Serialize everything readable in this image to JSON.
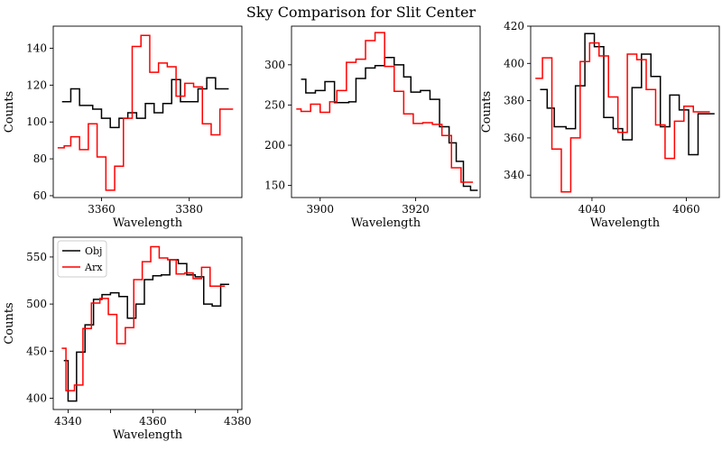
{
  "figure": {
    "title": "Sky Comparison for Slit Center"
  },
  "colors": {
    "obj": "#000000",
    "arx": "#ff0000"
  },
  "chart_data": [
    {
      "type": "line",
      "step": true,
      "xlabel": "Wavelength",
      "ylabel": "Counts",
      "xlim": [
        3349,
        3392
      ],
      "ylim": [
        59,
        152
      ],
      "xticks": [
        3360,
        3380
      ],
      "yticks": [
        60,
        80,
        100,
        120,
        140
      ],
      "series": [
        {
          "name": "Obj",
          "color": "#000000",
          "x": [
            3351,
            3353,
            3355,
            3358,
            3360,
            3362,
            3364,
            3366,
            3368,
            3370,
            3372,
            3374,
            3376,
            3378,
            3380,
            3382,
            3384,
            3386,
            3388,
            3389
          ],
          "y": [
            111,
            118,
            109,
            107,
            102,
            97,
            102,
            105,
            102,
            110,
            105,
            110,
            123,
            111,
            111,
            118,
            124,
            118,
            118,
            118
          ]
        },
        {
          "name": "Arx",
          "color": "#ff0000",
          "x": [
            3350,
            3351.5,
            3353,
            3355,
            3357,
            3359,
            3361,
            3363,
            3365,
            3367,
            3369,
            3371,
            3373,
            3375,
            3377,
            3379,
            3381,
            3383,
            3385,
            3387,
            3389,
            3390
          ],
          "y": [
            86,
            87,
            92,
            85,
            99,
            81,
            63,
            76,
            102,
            141,
            147,
            127,
            132,
            130,
            114,
            121,
            119,
            99,
            93,
            107,
            107,
            107
          ]
        }
      ]
    },
    {
      "type": "line",
      "step": true,
      "xlabel": "Wavelength",
      "ylabel": "",
      "xlim": [
        3894,
        3933.5
      ],
      "ylim": [
        135,
        348
      ],
      "xticks": [
        3900,
        3920
      ],
      "yticks": [
        150,
        200,
        250,
        300
      ],
      "series": [
        {
          "name": "Obj",
          "color": "#000000",
          "x": [
            3896,
            3897,
            3899,
            3901,
            3903,
            3904.5,
            3906,
            3907.5,
            3909.5,
            3911.5,
            3913.5,
            3915.5,
            3917.5,
            3919,
            3921,
            3923,
            3925,
            3927,
            3928.5,
            3930,
            3931.5,
            3933
          ],
          "y": [
            282,
            265,
            268,
            279,
            253,
            253,
            254,
            283,
            296,
            299,
            309,
            300,
            285,
            266,
            268,
            257,
            223,
            203,
            180,
            149,
            144,
            144
          ]
        },
        {
          "name": "Arx",
          "color": "#ff0000",
          "x": [
            3895,
            3896,
            3898,
            3900,
            3902,
            3903.5,
            3905.5,
            3907.5,
            3909.5,
            3911.5,
            3913.5,
            3915.5,
            3917.5,
            3919.5,
            3921.5,
            3923.5,
            3925.5,
            3927.5,
            3929.5,
            3931,
            3932
          ],
          "y": [
            245,
            242,
            251,
            241,
            254,
            268,
            303,
            307,
            330,
            340,
            298,
            267,
            239,
            227,
            228,
            226,
            212,
            172,
            154,
            154,
            154
          ]
        }
      ]
    },
    {
      "type": "line",
      "step": true,
      "xlabel": "Wavelength",
      "ylabel": "Counts",
      "xlim": [
        4027,
        4067
      ],
      "ylim": [
        328,
        420
      ],
      "xticks": [
        4040,
        4060
      ],
      "yticks": [
        340,
        360,
        380,
        400,
        420
      ],
      "series": [
        {
          "name": "Obj",
          "color": "#000000",
          "x": [
            4029,
            4030.5,
            4032,
            4034.5,
            4036.5,
            4038.5,
            4040.5,
            4042.5,
            4044.5,
            4046.5,
            4048.5,
            4050.5,
            4052.5,
            4054.5,
            4056.5,
            4058.5,
            4060.5,
            4062.5,
            4064.5,
            4066
          ],
          "y": [
            386,
            376,
            366,
            365,
            388,
            416,
            409,
            371,
            365,
            359,
            387,
            405,
            393,
            366,
            383,
            375,
            351,
            373,
            373,
            373
          ]
        },
        {
          "name": "Arx",
          "color": "#ff0000",
          "x": [
            4028,
            4029.5,
            4031.5,
            4033.5,
            4035.5,
            4037.5,
            4039.5,
            4041.5,
            4043.5,
            4045.5,
            4047.5,
            4049.5,
            4051.5,
            4053.5,
            4055.5,
            4057.5,
            4059.5,
            4061.5,
            4063.5,
            4065
          ],
          "y": [
            392,
            403,
            354,
            331,
            360,
            401,
            411,
            404,
            382,
            363,
            405,
            402,
            386,
            367,
            349,
            369,
            377,
            374,
            374,
            374
          ]
        }
      ]
    },
    {
      "type": "line",
      "step": true,
      "xlabel": "Wavelength",
      "ylabel": "Counts",
      "xlim": [
        4336.5,
        4381
      ],
      "ylim": [
        388,
        571
      ],
      "xticks": [
        4340,
        4350,
        4360,
        4370,
        4380
      ],
      "xticklabels": [
        "4340",
        "",
        "4360",
        "",
        "4380"
      ],
      "yticks": [
        400,
        450,
        500,
        550
      ],
      "legend": {
        "placement": "upper-left",
        "entries": [
          "Obj",
          "Arx"
        ]
      },
      "series": [
        {
          "name": "Obj",
          "color": "#000000",
          "x": [
            4339,
            4340,
            4342,
            4344,
            4346,
            4348,
            4350,
            4352,
            4354,
            4356,
            4358,
            4360,
            4362,
            4364,
            4366,
            4368,
            4370,
            4372,
            4374,
            4376,
            4378
          ],
          "y": [
            440,
            397,
            449,
            478,
            505,
            510,
            512,
            508,
            485,
            500,
            526,
            530,
            531,
            547,
            543,
            531,
            529,
            500,
            498,
            521,
            521
          ]
        },
        {
          "name": "Arx",
          "color": "#ff0000",
          "x": [
            4338.5,
            4339.5,
            4341.5,
            4343.5,
            4345.5,
            4347.5,
            4349.5,
            4351.5,
            4353.5,
            4355.5,
            4357.5,
            4359.5,
            4361.5,
            4363.5,
            4365.5,
            4367.5,
            4369.5,
            4371.5,
            4373.5,
            4375.5,
            4377
          ],
          "y": [
            453,
            408,
            414,
            474,
            501,
            506,
            489,
            458,
            475,
            526,
            545,
            561,
            549,
            547,
            532,
            533,
            527,
            539,
            519,
            519,
            519
          ]
        }
      ]
    }
  ]
}
